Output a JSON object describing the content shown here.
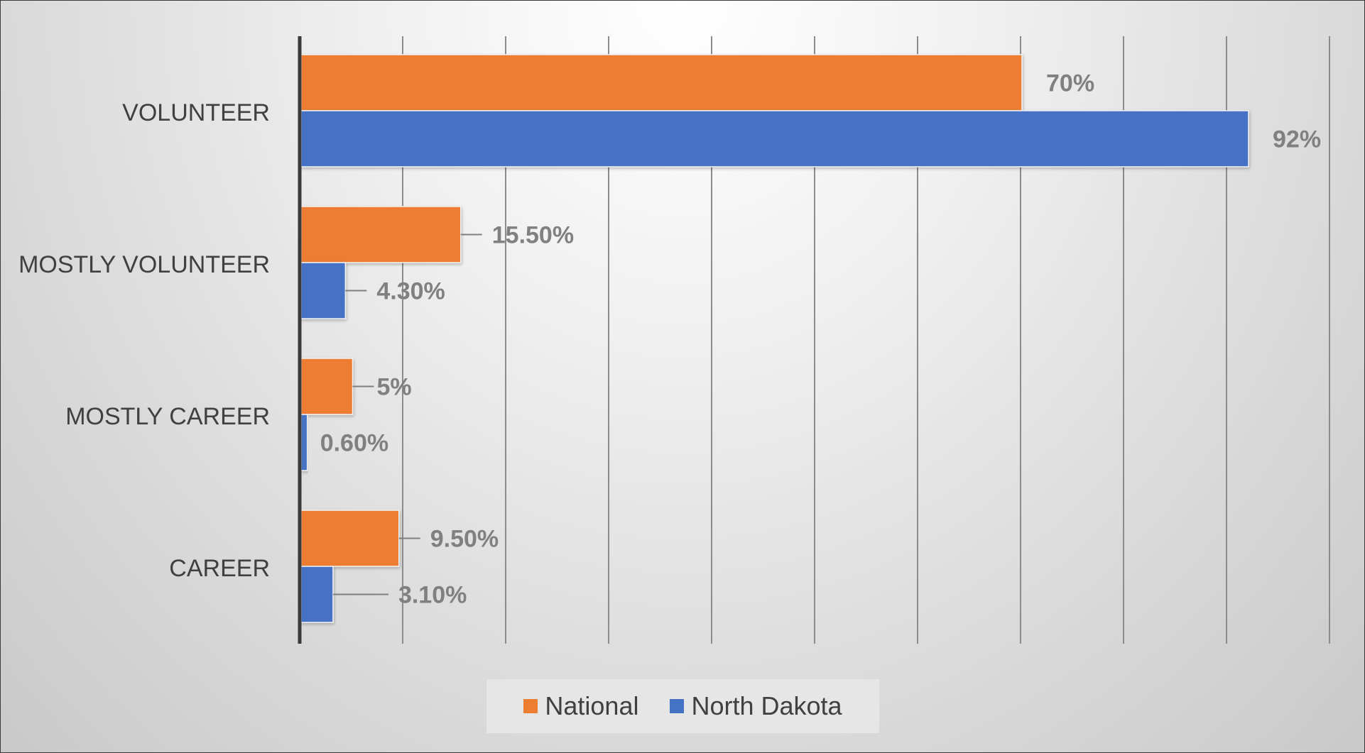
{
  "chart_data": {
    "type": "bar",
    "orientation": "horizontal",
    "categories": [
      "VOLUNTEER",
      "MOSTLY VOLUNTEER",
      "MOSTLY CAREER",
      "CAREER"
    ],
    "series": [
      {
        "name": "National",
        "color": "#ED7D31",
        "values": [
          70,
          15.5,
          5,
          9.5
        ],
        "labels": [
          "70%",
          "15.50%",
          "5%",
          "9.50%"
        ]
      },
      {
        "name": "North Dakota",
        "color": "#4472C4",
        "values": [
          92,
          4.3,
          0.6,
          3.1
        ],
        "labels": [
          "92%",
          "4.30%",
          "0.60%",
          "3.10%"
        ]
      }
    ],
    "xlim": [
      0,
      100
    ],
    "x_gridline_step": 10,
    "grid": true,
    "legend_position": "bottom",
    "x_tick_labels_shown": false
  }
}
